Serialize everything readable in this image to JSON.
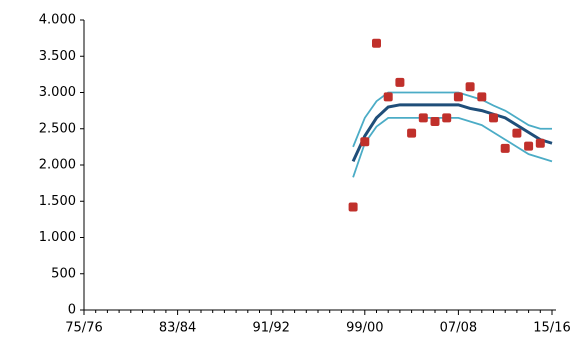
{
  "chart_data": {
    "type": "line",
    "categories": [
      "75/76",
      null,
      null,
      null,
      null,
      null,
      null,
      null,
      "83/84",
      null,
      null,
      null,
      null,
      null,
      null,
      null,
      "91/92",
      null,
      null,
      null,
      null,
      null,
      null,
      null,
      "99/00",
      null,
      null,
      null,
      null,
      null,
      null,
      null,
      "07/08",
      null,
      null,
      null,
      null,
      null,
      null,
      null,
      "15/16"
    ],
    "ylim": [
      0,
      4000
    ],
    "yticks": [
      0,
      500,
      {
        "value": 1000,
        "label": "1.000"
      },
      {
        "value": 1500,
        "label": "1.500"
      },
      {
        "value": 2000,
        "label": "2.000"
      },
      {
        "value": 2500,
        "label": "2.500"
      },
      {
        "value": 3000,
        "label": "3.000"
      },
      {
        "value": 3500,
        "label": "3.500"
      },
      {
        "value": 4000,
        "label": "4.000"
      }
    ],
    "series": [
      {
        "color": "#4bacc6",
        "style": "line",
        "values": [
          null,
          null,
          null,
          null,
          null,
          null,
          null,
          null,
          null,
          null,
          null,
          null,
          null,
          null,
          null,
          null,
          null,
          null,
          null,
          null,
          null,
          null,
          null,
          2250,
          2650,
          2880,
          3000,
          3000,
          3000,
          3000,
          3000,
          3000,
          3000,
          2950,
          2900,
          2820,
          2750,
          2650,
          2550,
          2500,
          2500
        ]
      },
      {
        "color": "#4bacc6",
        "style": "line",
        "values": [
          null,
          null,
          null,
          null,
          null,
          null,
          null,
          null,
          null,
          null,
          null,
          null,
          null,
          null,
          null,
          null,
          null,
          null,
          null,
          null,
          null,
          null,
          null,
          1830,
          2300,
          2530,
          2650,
          2650,
          2650,
          2650,
          2650,
          2650,
          2650,
          2600,
          2550,
          2450,
          2350,
          2250,
          2150,
          2100,
          2050
        ]
      },
      {
        "color": "#1f4e79",
        "style": "line",
        "values": [
          null,
          null,
          null,
          null,
          null,
          null,
          null,
          null,
          null,
          null,
          null,
          null,
          null,
          null,
          null,
          null,
          null,
          null,
          null,
          null,
          null,
          null,
          null,
          2050,
          2400,
          2650,
          2800,
          2830,
          2830,
          2830,
          2830,
          2830,
          2830,
          2780,
          2750,
          2700,
          2650,
          2550,
          2450,
          2350,
          2300
        ]
      },
      {
        "color": "#c0302b",
        "style": "markers",
        "values": [
          null,
          null,
          null,
          null,
          null,
          null,
          null,
          null,
          null,
          null,
          null,
          null,
          null,
          null,
          null,
          null,
          null,
          null,
          null,
          null,
          null,
          null,
          null,
          1420,
          2320,
          3680,
          2940,
          3140,
          2440,
          2650,
          2600,
          2650,
          2940,
          3080,
          2940,
          2650,
          2230,
          2440,
          2260,
          2300,
          null
        ]
      }
    ]
  }
}
